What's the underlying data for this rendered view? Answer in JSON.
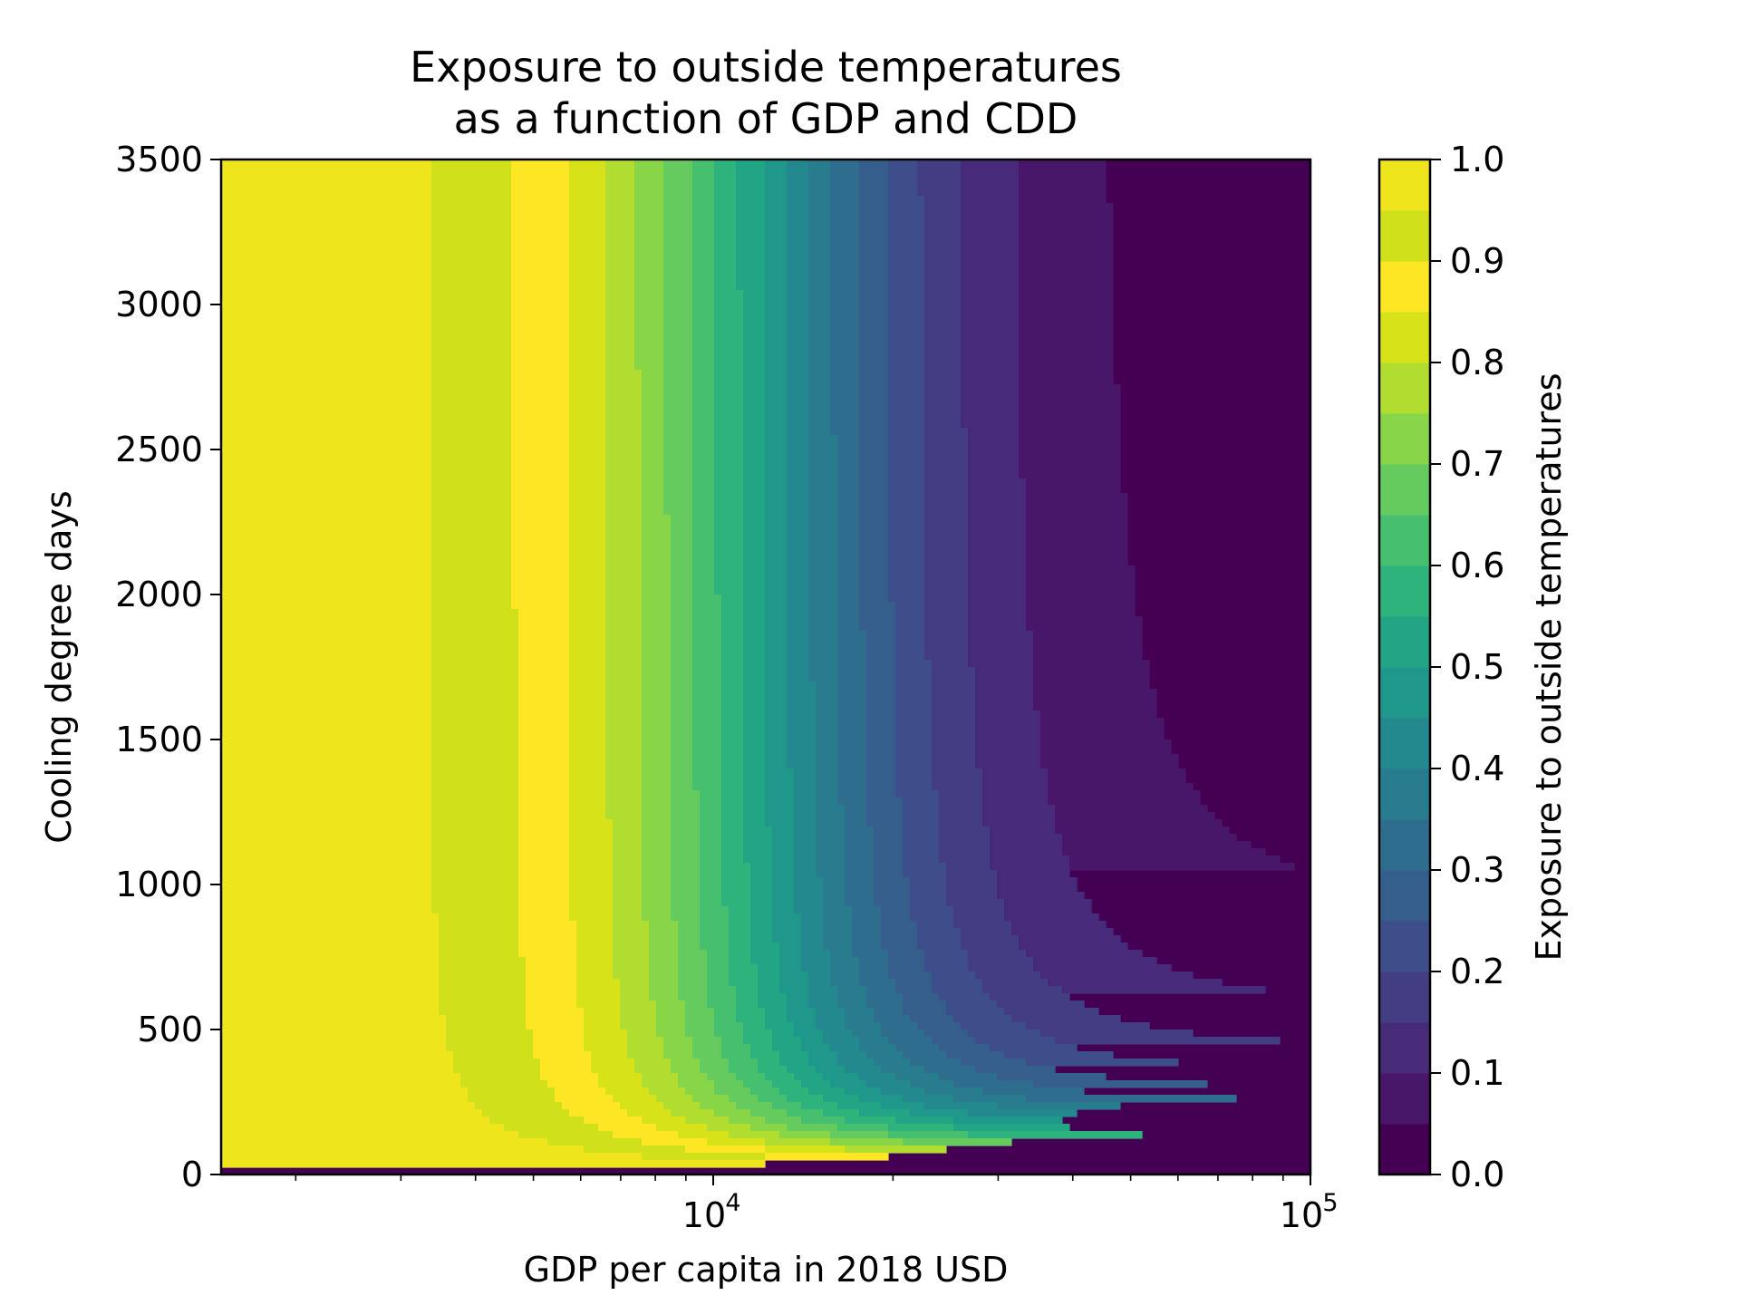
{
  "chart_data": {
    "type": "contour",
    "title_lines": [
      "Exposure to outside temperatures",
      "as a function of GDP and CDD"
    ],
    "xlabel": "GDP per capita in 2018 USD",
    "ylabel": "Cooling degree days",
    "x_scale": "log",
    "xlim": [
      1500,
      100000
    ],
    "ylim": [
      0,
      3500
    ],
    "x_ticks": [
      {
        "value": 10000,
        "base": "10",
        "exp": "4"
      },
      {
        "value": 100000,
        "base": "10",
        "exp": "5"
      }
    ],
    "x_minor_ticks": [
      2000,
      3000,
      4000,
      5000,
      6000,
      7000,
      8000,
      9000,
      20000,
      30000,
      40000,
      50000,
      60000,
      70000,
      80000,
      90000
    ],
    "y_ticks": [
      0,
      500,
      1000,
      1500,
      2000,
      2500,
      3000,
      3500
    ],
    "levels": [
      0.0,
      0.05,
      0.1,
      0.15,
      0.2,
      0.25,
      0.3,
      0.35,
      0.4,
      0.45,
      0.5,
      0.55,
      0.6,
      0.65,
      0.7,
      0.75,
      0.8,
      0.85,
      0.9,
      0.95,
      1.0
    ],
    "level_colors": [
      "#440154",
      "#481769",
      "#472a7a",
      "#433d84",
      "#3d4e8a",
      "#355e8d",
      "#2e6d8e",
      "#297b8e",
      "#23898e",
      "#1f978b",
      "#21a585",
      "#2eb37c",
      "#46c06f",
      "#65cb5e",
      "#89d548",
      "#b0dd2f",
      "#d8e219",
      "#fde725",
      "#d0e11c",
      "#efe51c"
    ],
    "colorbar": {
      "label": "Exposure to outside temperatures",
      "ticks": [
        "0.0",
        "0.1",
        "0.2",
        "0.3",
        "0.4",
        "0.5",
        "0.6",
        "0.7",
        "0.8",
        "0.9",
        "1.0"
      ]
    }
  }
}
